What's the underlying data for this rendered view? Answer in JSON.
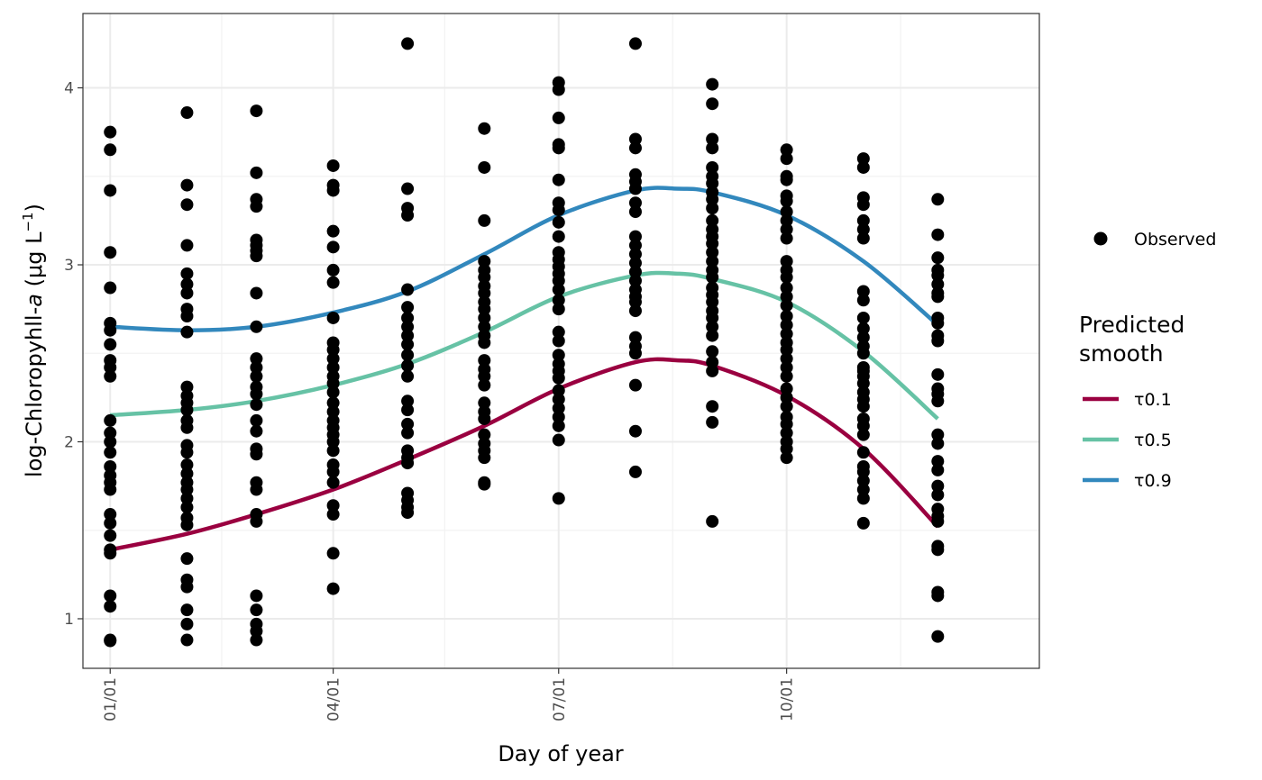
{
  "chart_data": {
    "type": "scatter",
    "xlabel": "Day of year",
    "ylabel_prefix": "log-Chloropyhll-",
    "ylabel_italic": "a",
    "ylabel_units_open": " (μg L",
    "ylabel_units_sup": "−1",
    "ylabel_units_close": ")",
    "xlim": [
      -10,
      376
    ],
    "ylim": [
      0.72,
      4.42
    ],
    "x_ticks": [
      {
        "value": 1,
        "label": "01/01"
      },
      {
        "value": 91,
        "label": "04/01"
      },
      {
        "value": 182,
        "label": "07/01"
      },
      {
        "value": 274,
        "label": "10/01"
      }
    ],
    "x_minor_gridlines": [
      46,
      136,
      228,
      320
    ],
    "y_ticks": [
      {
        "value": 1,
        "label": "1"
      },
      {
        "value": 2,
        "label": "2"
      },
      {
        "value": 3,
        "label": "3"
      },
      {
        "value": 4,
        "label": "4"
      }
    ],
    "y_minor_gridlines": [
      1.5,
      2.5,
      3.5
    ],
    "grid": true,
    "observed": {
      "name": "Observed",
      "color": "#000000",
      "points": [
        {
          "x": 1,
          "ys": [
            3.75,
            3.65,
            3.42,
            3.07,
            2.87,
            2.67,
            2.63,
            2.55,
            2.46,
            2.42,
            2.37,
            2.12,
            2.05,
            2.0,
            1.94,
            1.86,
            1.81,
            1.77,
            1.73,
            1.59,
            1.54,
            1.47,
            1.39,
            1.37,
            1.13,
            1.07,
            0.88,
            0.875
          ]
        },
        {
          "x": 32,
          "ys": [
            3.86,
            3.45,
            3.34,
            3.11,
            2.95,
            2.89,
            2.84,
            2.75,
            2.71,
            2.62,
            2.31,
            2.26,
            2.22,
            2.18,
            2.12,
            2.08,
            1.98,
            1.94,
            1.87,
            1.82,
            1.77,
            1.73,
            1.68,
            1.63,
            1.57,
            1.53,
            1.34,
            1.22,
            1.18,
            1.05,
            0.97,
            0.88
          ]
        },
        {
          "x": 60,
          "ys": [
            3.87,
            3.52,
            3.37,
            3.33,
            3.14,
            3.11,
            3.08,
            3.05,
            2.84,
            2.65,
            2.47,
            2.42,
            2.37,
            2.31,
            2.27,
            2.21,
            2.12,
            2.06,
            1.96,
            1.93,
            1.77,
            1.73,
            1.59,
            1.55,
            1.13,
            1.05,
            0.97,
            0.93,
            0.88
          ]
        },
        {
          "x": 91,
          "ys": [
            3.56,
            3.45,
            3.42,
            3.19,
            3.1,
            2.97,
            2.9,
            2.7,
            2.56,
            2.52,
            2.47,
            2.42,
            2.37,
            2.33,
            2.28,
            2.22,
            2.17,
            2.12,
            2.08,
            2.04,
            2.0,
            1.95,
            1.87,
            1.83,
            1.77,
            1.64,
            1.59,
            1.37,
            1.17
          ]
        },
        {
          "x": 121,
          "ys": [
            4.25,
            3.43,
            3.32,
            3.28,
            2.86,
            2.76,
            2.7,
            2.65,
            2.6,
            2.55,
            2.49,
            2.43,
            2.37,
            2.23,
            2.18,
            2.1,
            2.05,
            1.95,
            1.91,
            1.88,
            1.71,
            1.67,
            1.63,
            1.6
          ]
        },
        {
          "x": 152,
          "ys": [
            3.77,
            3.55,
            3.25,
            3.02,
            2.97,
            2.93,
            2.88,
            2.84,
            2.79,
            2.75,
            2.7,
            2.65,
            2.6,
            2.56,
            2.46,
            2.41,
            2.37,
            2.32,
            2.22,
            2.17,
            2.13,
            2.04,
            1.99,
            1.95,
            1.91,
            1.77,
            1.76
          ]
        },
        {
          "x": 182,
          "ys": [
            4.03,
            3.99,
            3.83,
            3.68,
            3.66,
            3.48,
            3.35,
            3.31,
            3.24,
            3.16,
            3.07,
            3.03,
            2.99,
            2.95,
            2.91,
            2.86,
            2.8,
            2.75,
            2.62,
            2.57,
            2.49,
            2.44,
            2.4,
            2.36,
            2.29,
            2.24,
            2.19,
            2.14,
            2.09,
            2.01,
            1.68
          ]
        },
        {
          "x": 213,
          "ys": [
            4.25,
            3.71,
            3.66,
            3.51,
            3.47,
            3.43,
            3.35,
            3.3,
            3.16,
            3.11,
            3.06,
            3.01,
            2.96,
            2.91,
            2.86,
            2.82,
            2.79,
            2.74,
            2.59,
            2.54,
            2.5,
            2.32,
            2.06,
            1.83
          ]
        },
        {
          "x": 244,
          "ys": [
            4.02,
            3.91,
            3.71,
            3.66,
            3.55,
            3.5,
            3.46,
            3.41,
            3.37,
            3.32,
            3.25,
            3.2,
            3.16,
            3.12,
            3.07,
            3.02,
            2.97,
            2.93,
            2.87,
            2.83,
            2.79,
            2.74,
            2.7,
            2.65,
            2.6,
            2.51,
            2.45,
            2.4,
            2.2,
            2.11,
            1.55
          ]
        },
        {
          "x": 274,
          "ys": [
            3.65,
            3.6,
            3.5,
            3.48,
            3.39,
            3.36,
            3.3,
            3.25,
            3.2,
            3.15,
            3.02,
            2.97,
            2.93,
            2.87,
            2.82,
            2.77,
            2.71,
            2.66,
            2.61,
            2.56,
            2.52,
            2.47,
            2.42,
            2.37,
            2.3,
            2.25,
            2.2,
            2.14,
            2.1,
            2.05,
            2.0,
            1.96,
            1.91
          ]
        },
        {
          "x": 305,
          "ys": [
            3.6,
            3.55,
            3.38,
            3.34,
            3.25,
            3.2,
            3.15,
            2.85,
            2.8,
            2.7,
            2.64,
            2.59,
            2.54,
            2.5,
            2.42,
            2.4,
            2.37,
            2.33,
            2.28,
            2.24,
            2.2,
            2.13,
            2.09,
            2.04,
            1.94,
            1.86,
            1.83,
            1.78,
            1.73,
            1.68,
            1.54
          ]
        },
        {
          "x": 335,
          "ys": [
            3.37,
            3.17,
            3.04,
            2.97,
            2.94,
            2.89,
            2.84,
            2.82,
            2.7,
            2.67,
            2.6,
            2.57,
            2.38,
            2.3,
            2.27,
            2.23,
            2.04,
            1.99,
            1.89,
            1.84,
            1.75,
            1.7,
            1.62,
            1.58,
            1.55,
            1.41,
            1.39,
            1.15,
            1.13,
            0.9
          ]
        }
      ]
    },
    "series": [
      {
        "name": "τ0.1",
        "color": "#9a0040",
        "x": [
          1,
          32,
          60,
          91,
          121,
          152,
          182,
          213,
          230,
          244,
          274,
          305,
          335
        ],
        "y": [
          1.39,
          1.48,
          1.59,
          1.73,
          1.9,
          2.09,
          2.3,
          2.45,
          2.46,
          2.43,
          2.26,
          1.96,
          1.52
        ]
      },
      {
        "name": "τ0.5",
        "color": "#66c2a5",
        "x": [
          1,
          32,
          60,
          91,
          121,
          152,
          182,
          213,
          230,
          244,
          274,
          305,
          335
        ],
        "y": [
          2.15,
          2.18,
          2.23,
          2.32,
          2.44,
          2.62,
          2.82,
          2.94,
          2.95,
          2.92,
          2.79,
          2.51,
          2.13
        ]
      },
      {
        "name": "τ0.9",
        "color": "#3288bd",
        "x": [
          1,
          32,
          60,
          91,
          121,
          152,
          182,
          213,
          230,
          244,
          274,
          305,
          335
        ],
        "y": [
          2.65,
          2.63,
          2.65,
          2.73,
          2.85,
          3.06,
          3.28,
          3.42,
          3.43,
          3.41,
          3.28,
          3.02,
          2.66
        ]
      }
    ],
    "legend": {
      "position": "right",
      "observed_label": "Observed",
      "smooth_title_line1": "Predicted",
      "smooth_title_line2": "smooth"
    }
  }
}
